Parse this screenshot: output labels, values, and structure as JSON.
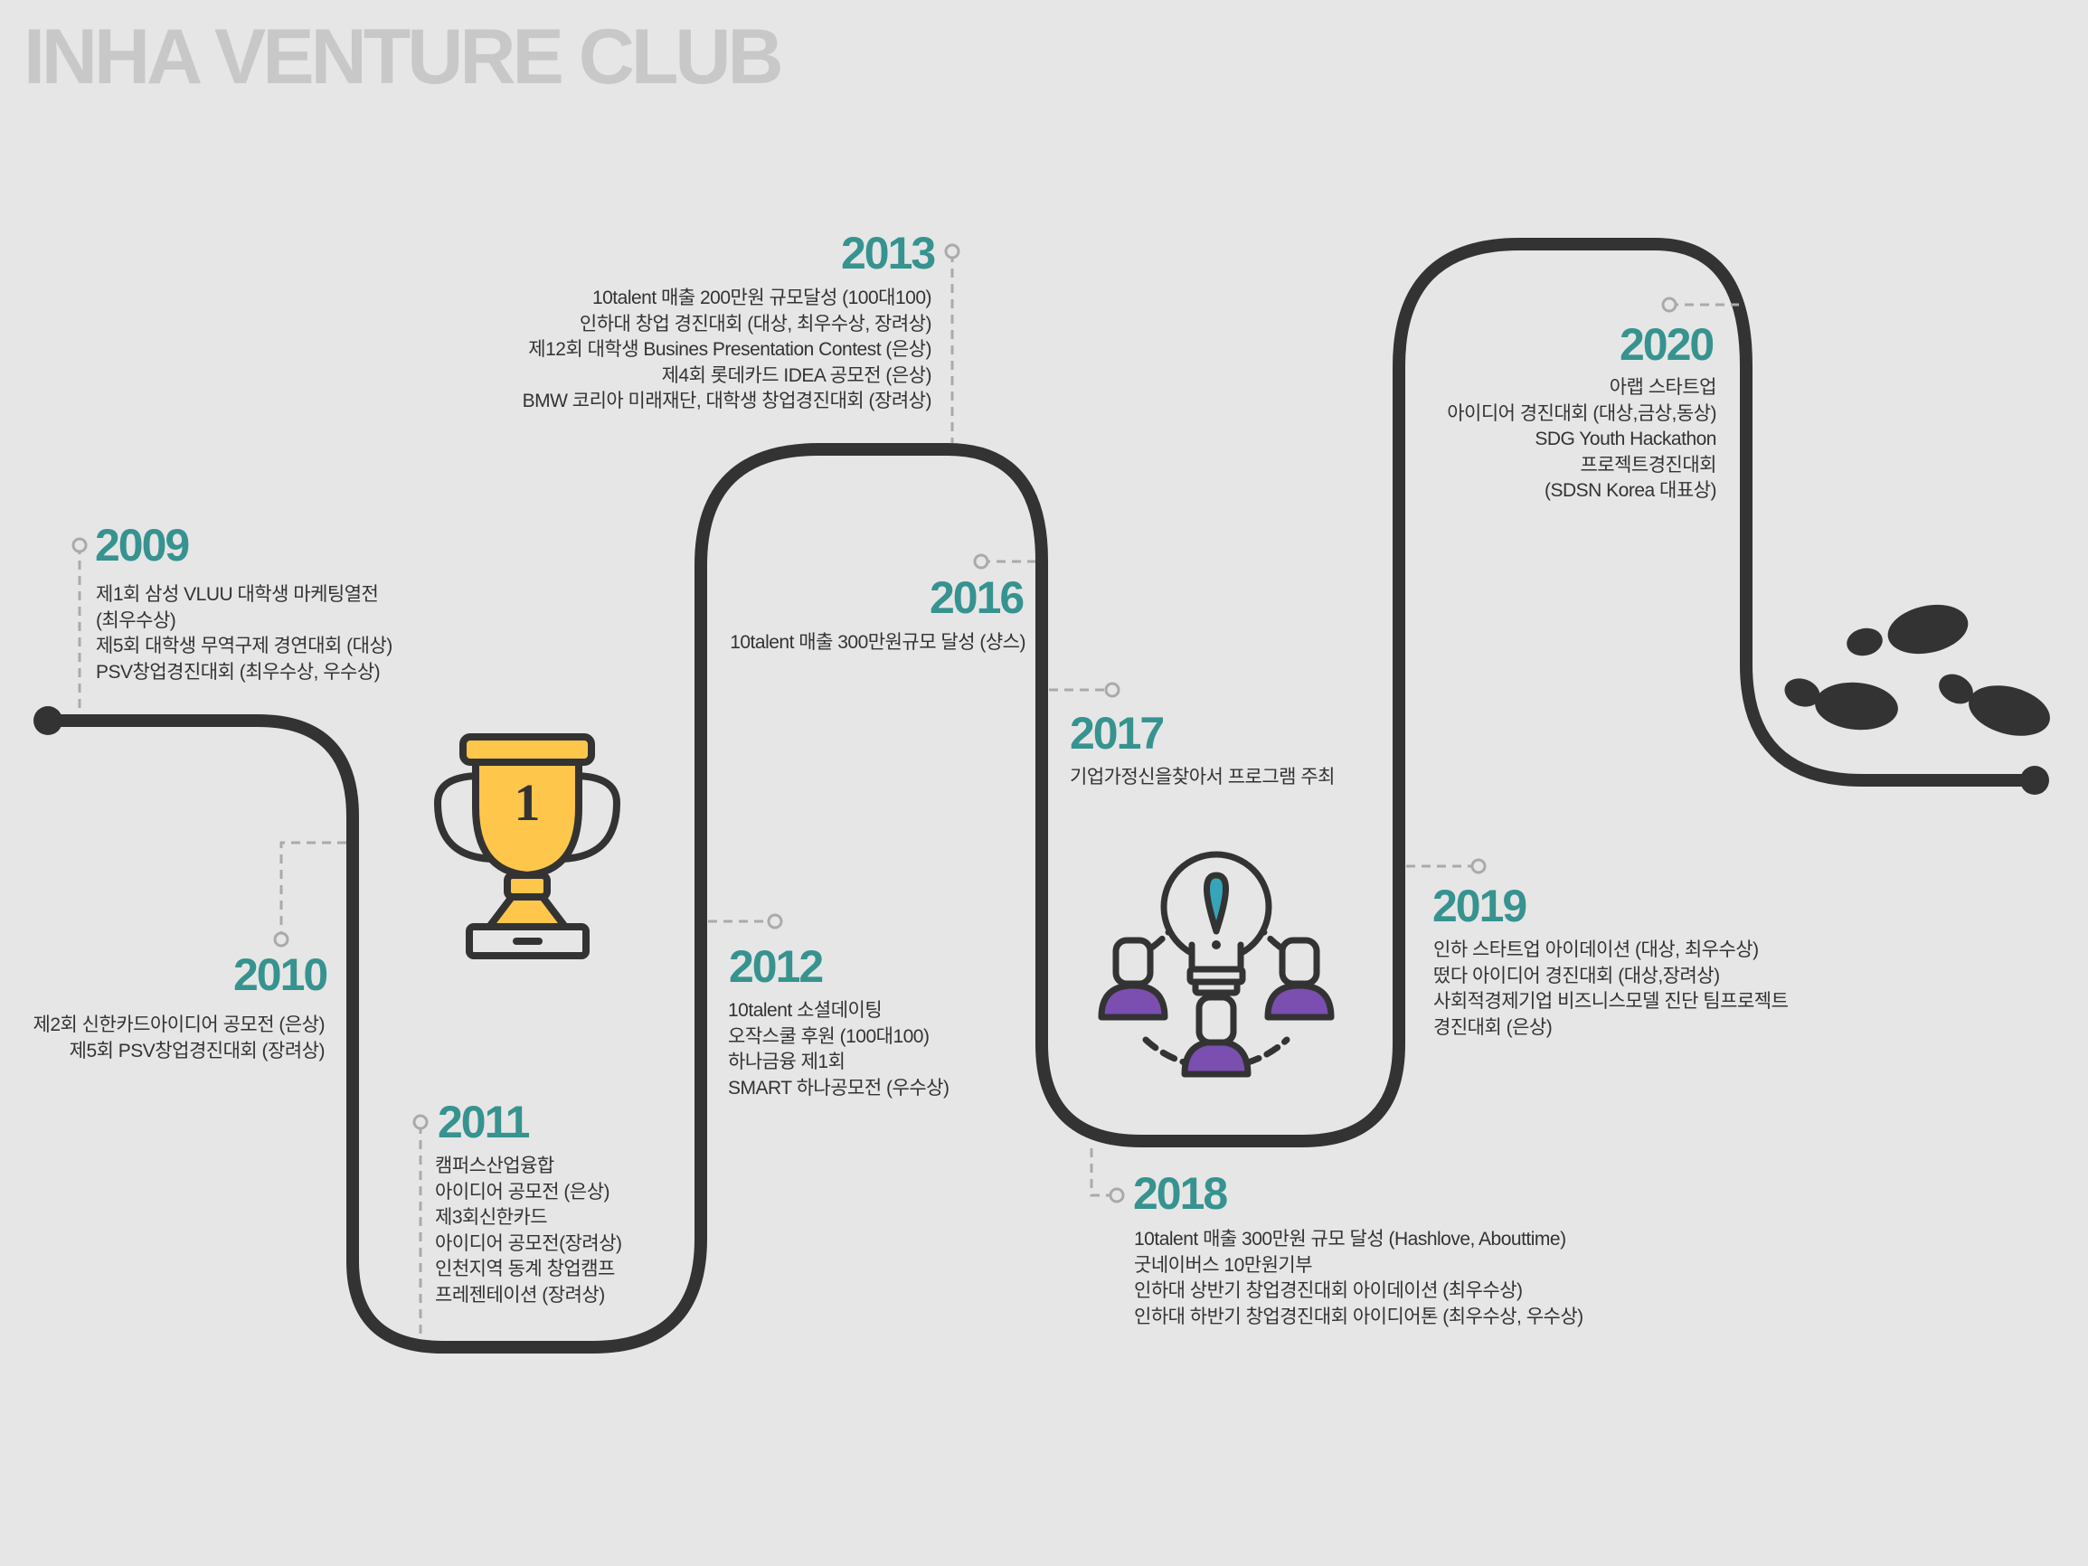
{
  "title": "INHA VENTURE CLUB",
  "colors": {
    "accent": "#36938f",
    "road": "#333333",
    "trophy": "#fec64b",
    "people": "#7a4fb0",
    "bulb_accent": "#36a5b8",
    "connector": "#aaaaaa",
    "title": "#c8c8c8"
  },
  "icons": [
    "trophy-icon",
    "idea-team-icon",
    "footprints-icon"
  ],
  "milestones": [
    {
      "year": "2009",
      "lines": [
        "제1회 삼성 VLUU 대학생 마케팅열전",
        "(최우수상)",
        "제5회 대학생 무역구제 경연대회 (대상)",
        "PSV창업경진대회 (최우수상, 우수상)"
      ]
    },
    {
      "year": "2010",
      "lines": [
        "제2회 신한카드아이디어 공모전 (은상)",
        "제5회 PSV창업경진대회 (장려상)"
      ]
    },
    {
      "year": "2011",
      "lines": [
        "캠퍼스산업융합",
        "아이디어 공모전 (은상)",
        "제3회신한카드",
        "아이디어 공모전(장려상)",
        "인천지역 동계 창업캠프",
        "프레젠테이션 (장려상)"
      ]
    },
    {
      "year": "2012",
      "lines": [
        "10talent 소셜데이팅",
        "오작스쿨 후원 (100대100)",
        "하나금융 제1회",
        "SMART 하나공모전 (우수상)"
      ]
    },
    {
      "year": "2013",
      "lines": [
        "10talent 매출 200만원 규모달성 (100대100)",
        "인하대 창업 경진대회 (대상, 최우수상, 장려상)",
        "제12회 대학생 Busines Presentation Contest (은상)",
        "제4회 롯데카드 IDEA 공모전 (은상)",
        "BMW 코리아 미래재단, 대학생 창업경진대회 (장려상)"
      ]
    },
    {
      "year": "2016",
      "lines": [
        "10talent 매출 300만원규모 달성 (샹스)"
      ]
    },
    {
      "year": "2017",
      "lines": [
        "기업가정신을찾아서 프로그램 주최"
      ]
    },
    {
      "year": "2018",
      "lines": [
        "10talent  매출 300만원 규모 달성 (Hashlove, Abouttime)",
        "굿네이버스 10만원기부",
        "인하대 상반기 창업경진대회 아이데이션 (최우수상)",
        "인하대 하반기 창업경진대회 아이디어톤 (최우수상, 우수상)"
      ]
    },
    {
      "year": "2019",
      "lines": [
        "인하 스타트업 아이데이션 (대상, 최우수상)",
        "떴다 아이디어 경진대회 (대상,장려상)",
        "사회적경제기업 비즈니스모델 진단 팀프로젝트",
        "경진대회 (은상)"
      ]
    },
    {
      "year": "2020",
      "lines": [
        "아랩 스타트업",
        "아이디어 경진대회 (대상,금상,동상)",
        "SDG Youth Hackathon",
        "프로젝트경진대회",
        "(SDSN Korea 대표상)"
      ]
    }
  ]
}
